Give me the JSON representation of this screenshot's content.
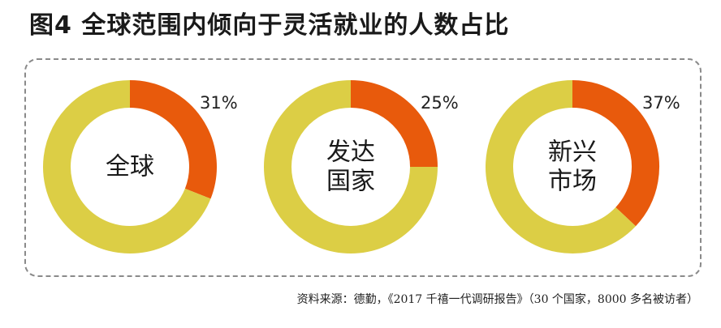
{
  "title": "图4 全球范围内倾向于灵活就业的人数占比",
  "source": "资料来源：德勤，《2017 千禧一代调研报告》（30 个国家，8000 多名被访者）",
  "colors": {
    "highlight": "#E85A0C",
    "remainder": "#DCCE45"
  },
  "chart_data": [
    {
      "type": "pie",
      "donut": true,
      "center_label": [
        "全球"
      ],
      "values": [
        31,
        69
      ],
      "value_labels": [
        "31%"
      ]
    },
    {
      "type": "pie",
      "donut": true,
      "center_label": [
        "发达",
        "国家"
      ],
      "values": [
        25,
        75
      ],
      "value_labels": [
        "25%"
      ]
    },
    {
      "type": "pie",
      "donut": true,
      "center_label": [
        "新兴",
        "市场"
      ],
      "values": [
        37,
        63
      ],
      "value_labels": [
        "37%"
      ]
    }
  ]
}
